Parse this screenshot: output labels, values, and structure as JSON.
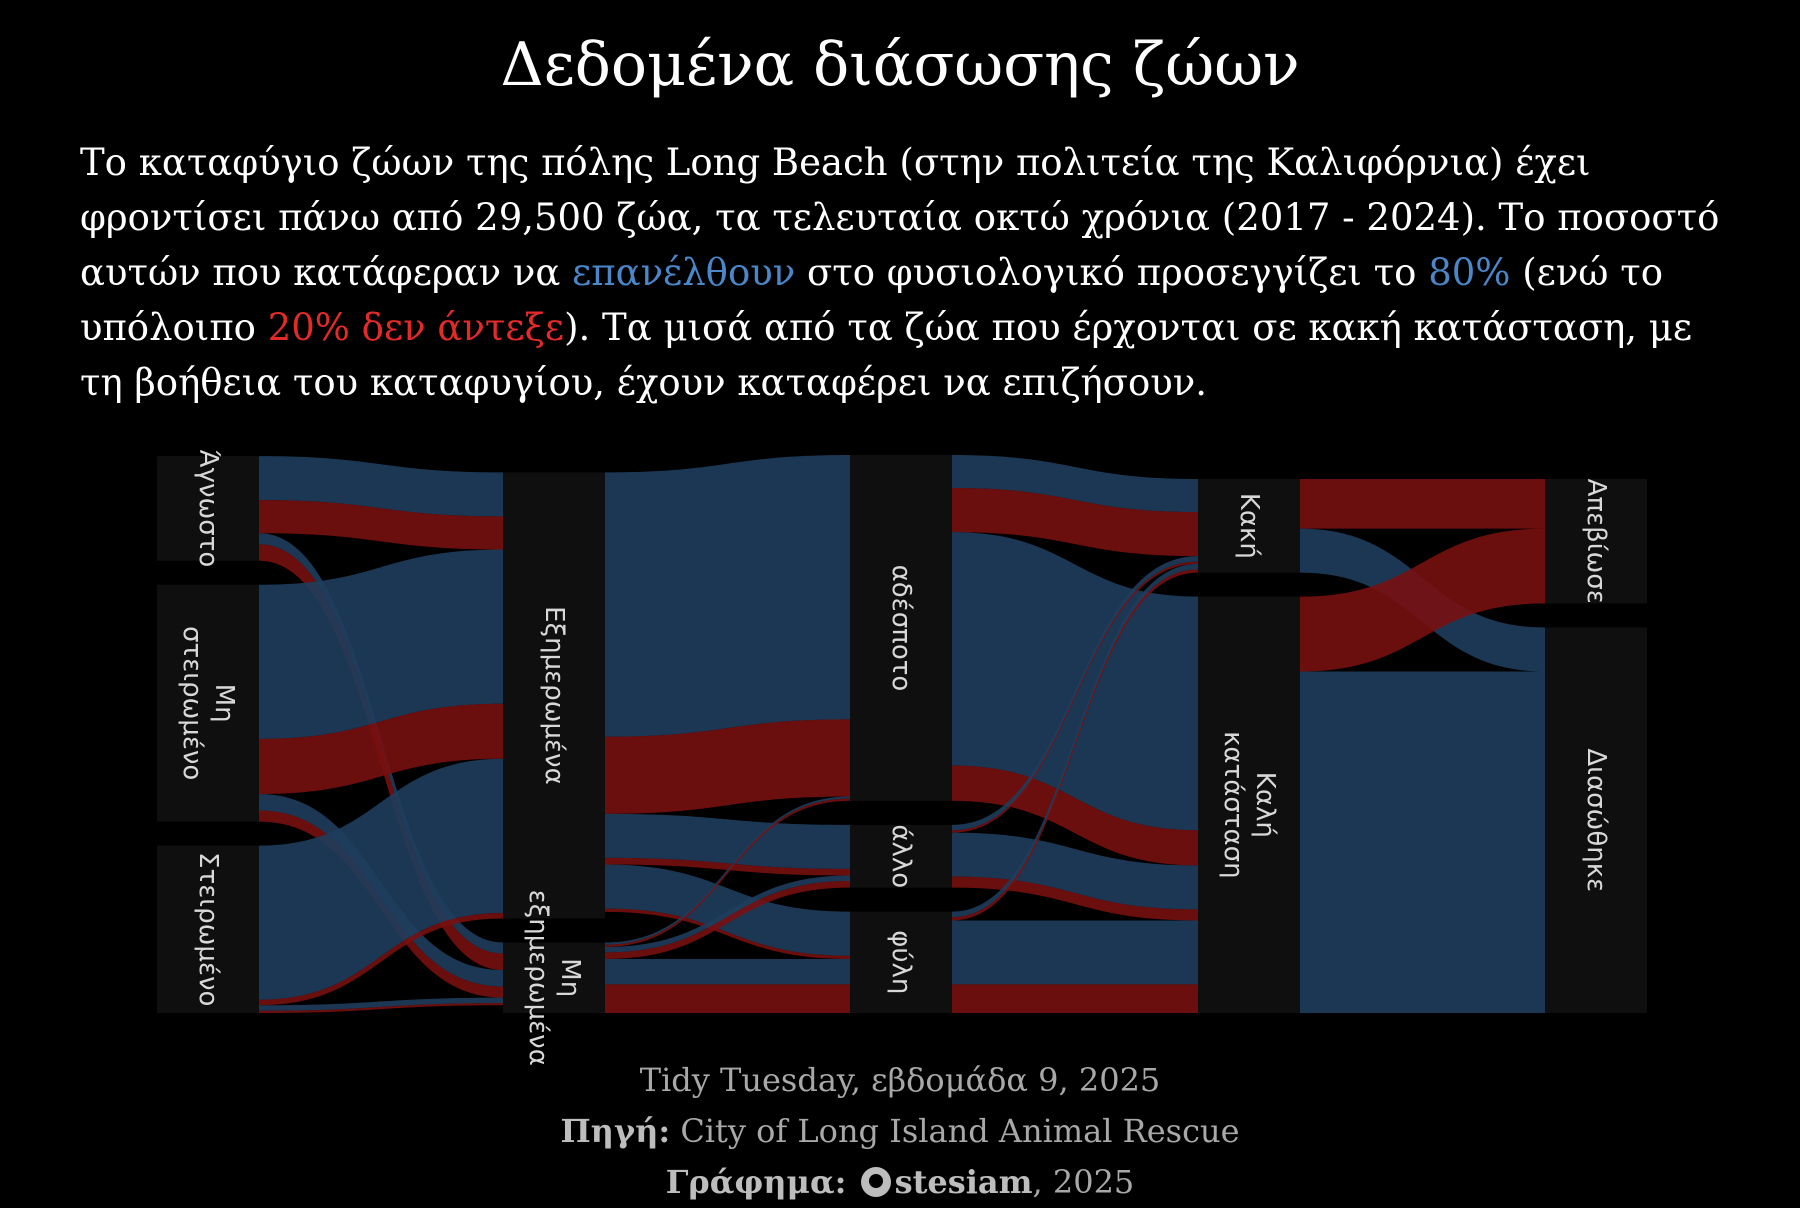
{
  "title": "Δεδομένα διάσωσης ζώων",
  "subtitle": {
    "p1": "Το καταφύγιο ζώων της πόλης Long Beach (στην πολιτεία της Καλιφόρνια) έχει φροντίσει πάνω από 29,500 ζώα, τα τελευταία οκτώ χρόνια (2017 - 2024). Το ποσοστό αυτών που κατάφεραν να ",
    "blue1": "επανέλθουν",
    "p2": " στο φυσιολογικό προσεγγίζει το ",
    "blue2": "80%",
    "p3": " (ενώ το υπόλοιπο ",
    "red1": "20% δεν άντεξε",
    "p4": "). Τα μισά από τα ζώα που έρχονται σε κακή κατάσταση, με τη βοήθεια του καταφυγίου, έχουν καταφέρει να επιζήσουν."
  },
  "caption": {
    "line1": "Tidy Tuesday, εβδομάδα 9, 2025",
    "source_label": "Πηγή:",
    "source": "City of Long Island Animal Rescue",
    "graphic_label": "Γράφημα:",
    "author": "stesiam",
    "year": ", 2025"
  },
  "colors": {
    "background": "#000000",
    "node": "#0f0f0f",
    "survived": "#1f3d5c",
    "died": "#7a1010",
    "blue_text": "#4a86c8",
    "red_text": "#e32a2a"
  },
  "chart_data": {
    "type": "sankey",
    "stages": [
      {
        "nodes": [
          "Άγνωστο",
          "Μη στειρωμένο",
          "Στειρωμένο"
        ]
      },
      {
        "nodes": [
          "Εξημερωμένα",
          "Μη εξημερωμένα"
        ]
      },
      {
        "nodes": [
          "αδέσποτο",
          "άλλο",
          "φύλη"
        ]
      },
      {
        "nodes": [
          "Κακή",
          "Καλή κατάσταση"
        ]
      },
      {
        "nodes": [
          "Απεβίωσε",
          "Διασώθηκε"
        ]
      }
    ],
    "flow_categories": [
      "Διασώθηκε",
      "Απεβίωσε"
    ],
    "flows": [
      {
        "from": "Άγνωστο",
        "to": "Εξημερωμένα",
        "blue": 4,
        "red": 3
      },
      {
        "from": "Άγνωστο",
        "to": "Μη εξημερωμένα",
        "blue": 1,
        "red": 1.5
      },
      {
        "from": "Μη στειρωμένο",
        "to": "Εξημερωμένα",
        "blue": 14,
        "red": 5
      },
      {
        "from": "Μη στειρωμένο",
        "to": "Μη εξημερωμένα",
        "blue": 1.5,
        "red": 1
      },
      {
        "from": "Στειρωμένο",
        "to": "Εξημερωμένα",
        "blue": 14,
        "red": 0.5
      },
      {
        "from": "Στειρωμένο",
        "to": "Μη εξημερωμένα",
        "blue": 0.5,
        "red": 0.2
      },
      {
        "from": "Εξημερωμένα",
        "to": "αδέσποτο",
        "blue": 24,
        "red": 7
      },
      {
        "from": "Εξημερωμένα",
        "to": "άλλο",
        "blue": 4,
        "red": 0.6
      },
      {
        "from": "Εξημερωμένα",
        "to": "φύλη",
        "blue": 4,
        "red": 0.3
      },
      {
        "from": "Μη εξημερωμένα",
        "to": "αδέσποτο",
        "blue": 0.2,
        "red": 0.2
      },
      {
        "from": "Μη εξημερωμένα",
        "to": "άλλο",
        "blue": 0.5,
        "red": 0.6
      },
      {
        "from": "Μη εξημερωμένα",
        "to": "φύλη",
        "blue": 2.3,
        "red": 2.6
      },
      {
        "from": "αδέσποτο",
        "to": "Κακή",
        "blue": 3,
        "red": 4
      },
      {
        "from": "αδέσποτο",
        "to": "Καλή κατάσταση",
        "blue": 21.2,
        "red": 3.2
      },
      {
        "from": "άλλο",
        "to": "Κακή",
        "blue": 0.5,
        "red": 0.2
      },
      {
        "from": "άλλο",
        "to": "Καλή κατάσταση",
        "blue": 4,
        "red": 1
      },
      {
        "from": "φύλη",
        "to": "Κακή",
        "blue": 0.5,
        "red": 0.3
      },
      {
        "from": "φύλη",
        "to": "Καλή κατάσταση",
        "blue": 5.8,
        "red": 2.6
      },
      {
        "from": "Κακή",
        "to": "Απεβίωσε",
        "blue": 0,
        "red": 4.5
      },
      {
        "from": "Κακή",
        "to": "Διασώθηκε",
        "blue": 4,
        "red": 0
      },
      {
        "from": "Καλή κατάσταση",
        "to": "Απεβίωσε",
        "blue": 0,
        "red": 6.8
      },
      {
        "from": "Καλή κατάσταση",
        "to": "Διασώθηκε",
        "blue": 31,
        "red": 0
      }
    ],
    "title": "",
    "xlabel": "",
    "ylabel": ""
  }
}
